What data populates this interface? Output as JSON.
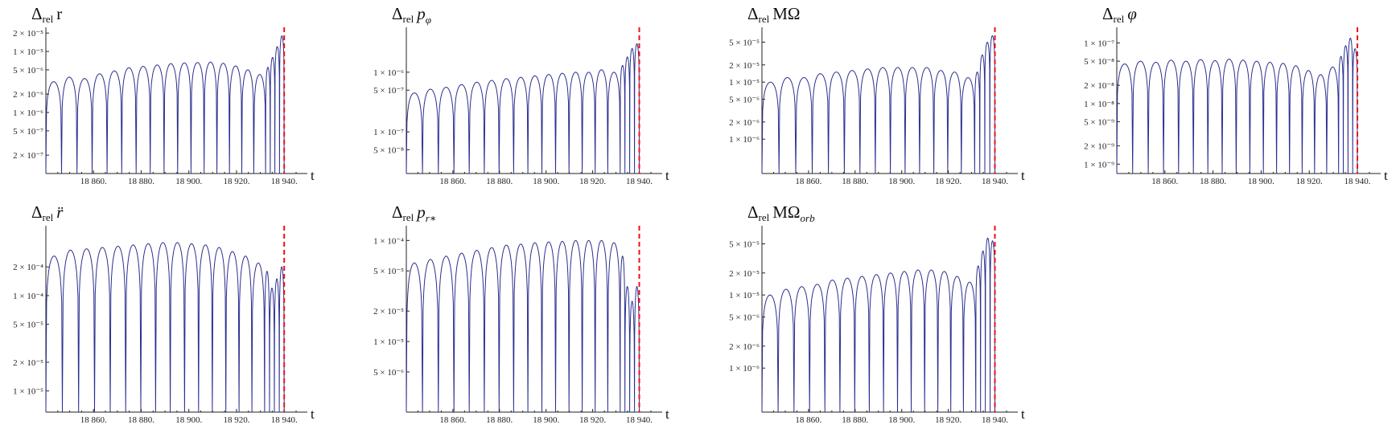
{
  "chart_data": [
    {
      "type": "line",
      "title_main": "Δ",
      "title_sub": "rel",
      "title_rest": "r",
      "title_rest_italic": false,
      "title_rest_sub": "",
      "xlabel": "t",
      "xticks": [
        "18 860.",
        "18 880.",
        "18 900.",
        "18 920.",
        "18 940."
      ],
      "yticks": [
        "2 × 10⁻⁵",
        "1 × 10⁻⁵",
        "5 × 10⁻⁶",
        "2 × 10⁻⁶",
        "1 × 10⁻⁶",
        "5 × 10⁻⁷",
        "2 × 10⁻⁷"
      ],
      "ylim": [
        1e-07,
        2.2e-05
      ],
      "ytick_values": [
        2e-05,
        1e-05,
        5e-06,
        2e-06,
        1e-06,
        5e-07,
        2e-07
      ],
      "xlim": [
        18840,
        18945
      ],
      "scale_y": "log",
      "arch_peaks": [
        3.2e-06,
        3.8e-06,
        3.6e-06,
        4.3e-06,
        4.8e-06,
        5.4e-06,
        5.7e-06,
        6e-06,
        6.3e-06,
        6.5e-06,
        6.6e-06,
        6.7e-06,
        6.4e-06,
        5.8e-06,
        5e-06,
        4.2e-06,
        5.5e-06,
        8e-06,
        1.2e-05,
        1.8e-05
      ],
      "vline_t": 18940,
      "series_name": ""
    },
    {
      "type": "line",
      "title_main": "Δ",
      "title_sub": "rel",
      "title_rest": "p",
      "title_rest_italic": true,
      "title_rest_sub": "φ",
      "xlabel": "t",
      "xticks": [
        "18 860.",
        "18 880.",
        "18 900.",
        "18 920.",
        "18 940."
      ],
      "yticks": [
        "1 × 10⁻⁶",
        "5 × 10⁻⁷",
        "1 × 10⁻⁷",
        "5 × 10⁻⁸"
      ],
      "ylim": [
        2e-08,
        5e-06
      ],
      "ytick_values": [
        1e-06,
        5e-07,
        1e-07,
        5e-08
      ],
      "xlim": [
        18840,
        18945
      ],
      "scale_y": "log",
      "arch_peaks": [
        4.5e-07,
        5.2e-07,
        5.6e-07,
        6.2e-07,
        6.8e-07,
        7.3e-07,
        7.8e-07,
        8.2e-07,
        8.7e-07,
        9.2e-07,
        9.6e-07,
        1e-06,
        1e-06,
        1.1e-06,
        1e-06,
        1.3e-06,
        1.8e-06,
        2.5e-06,
        3e-06
      ],
      "vline_t": 18940,
      "series_name": ""
    },
    {
      "type": "line",
      "title_main": "Δ",
      "title_sub": "rel",
      "title_rest": "MΩ",
      "title_rest_italic": false,
      "title_rest_sub": "",
      "xlabel": "t",
      "xticks": [
        "18 860.",
        "18 880.",
        "18 900.",
        "18 920.",
        "18 940."
      ],
      "yticks": [
        "5 × 10⁻⁵",
        "2 × 10⁻⁵",
        "1 × 10⁻⁵",
        "5 × 10⁻⁶",
        "2 × 10⁻⁶",
        "1 × 10⁻⁶"
      ],
      "ylim": [
        2.5e-07,
        8e-05
      ],
      "ytick_values": [
        5e-05,
        2e-05,
        1e-05,
        5e-06,
        2e-06,
        1e-06
      ],
      "xlim": [
        18840,
        18945
      ],
      "scale_y": "log",
      "arch_peaks": [
        1e-05,
        1.2e-05,
        1.2e-05,
        1.4e-05,
        1.5e-05,
        1.6e-05,
        1.7e-05,
        1.8e-05,
        1.8e-05,
        1.8e-05,
        1.8e-05,
        1.6e-05,
        1.5e-05,
        1.2e-05,
        1.5e-05,
        3e-05,
        5e-05,
        6.5e-05
      ],
      "vline_t": 18940,
      "series_name": ""
    },
    {
      "type": "line",
      "title_main": "Δ",
      "title_sub": "rel",
      "title_rest": "φ",
      "title_rest_italic": true,
      "title_rest_sub": "",
      "xlabel": "t",
      "xticks": [
        "18 860.",
        "18 880.",
        "18 900.",
        "18 920.",
        "18 940."
      ],
      "yticks": [
        "1 × 10⁻⁷",
        "5 × 10⁻⁸",
        "2 × 10⁻⁸",
        "1 × 10⁻⁸",
        "5 × 10⁻⁹",
        "2 × 10⁻⁹",
        "1 × 10⁻⁹"
      ],
      "ylim": [
        7e-10,
        1.6e-07
      ],
      "ytick_values": [
        1e-07,
        5e-08,
        2e-08,
        1e-08,
        5e-09,
        2e-09,
        1e-09
      ],
      "xlim": [
        18840,
        18945
      ],
      "scale_y": "log",
      "arch_peaks": [
        4.5e-08,
        5e-08,
        4.8e-08,
        5.2e-08,
        5e-08,
        5.3e-08,
        5.1e-08,
        5.4e-08,
        5.2e-08,
        5e-08,
        4.8e-08,
        4.6e-08,
        4.2e-08,
        3.5e-08,
        3e-08,
        4e-08,
        6e-08,
        9e-08,
        1.2e-07,
        8e-08
      ],
      "vline_t": 18940,
      "series_name": ""
    },
    {
      "type": "line",
      "title_main": "Δ",
      "title_sub": "rel",
      "title_rest": "r̈",
      "title_rest_italic": true,
      "title_rest_sub": "",
      "xlabel": "t",
      "xticks": [
        "18 860.",
        "18 880.",
        "18 900.",
        "18 920.",
        "18 940."
      ],
      "yticks": [
        "2 × 10⁻⁴",
        "1 × 10⁻⁴",
        "5 × 10⁻⁵",
        "2 × 10⁻⁵",
        "1 × 10⁻⁵"
      ],
      "ylim": [
        6e-06,
        0.0005
      ],
      "ytick_values": [
        0.0002,
        0.0001,
        5e-05,
        2e-05,
        1e-05
      ],
      "xlim": [
        18840,
        18945
      ],
      "scale_y": "log",
      "arch_peaks": [
        0.00026,
        0.0003,
        0.00031,
        0.00032,
        0.00033,
        0.00034,
        0.00035,
        0.00036,
        0.00036,
        0.00035,
        0.00034,
        0.00032,
        0.00029,
        0.00026,
        0.00022,
        0.00018,
        0.00012,
        0.00015,
        0.0002
      ],
      "vline_t": 18940,
      "series_name": ""
    },
    {
      "type": "line",
      "title_main": "Δ",
      "title_sub": "rel",
      "title_rest": "p",
      "title_rest_italic": true,
      "title_rest_sub": "r∗",
      "xlabel": "t",
      "xticks": [
        "18 860.",
        "18 880.",
        "18 900.",
        "18 920.",
        "18 940."
      ],
      "yticks": [
        "1 × 10⁻⁴",
        "5 × 10⁻⁵",
        "2 × 10⁻⁵",
        "1 × 10⁻⁵",
        "5 × 10⁻⁶"
      ],
      "ylim": [
        2e-06,
        0.00013
      ],
      "ytick_values": [
        0.0001,
        5e-05,
        2e-05,
        1e-05,
        5e-06
      ],
      "xlim": [
        18840,
        18945
      ],
      "scale_y": "log",
      "arch_peaks": [
        6e-05,
        6.5e-05,
        7e-05,
        7.5e-05,
        8e-05,
        8.5e-05,
        9e-05,
        9.2e-05,
        9.5e-05,
        9.7e-05,
        9.8e-05,
        0.0001,
        0.0001,
        0.0001,
        9.5e-05,
        7e-05,
        3.5e-05,
        2.5e-05,
        3.5e-05
      ],
      "vline_t": 18940,
      "series_name": ""
    },
    {
      "type": "line",
      "title_main": "Δ",
      "title_sub": "rel",
      "title_rest": "MΩ",
      "title_rest_italic": false,
      "title_rest_sub": "orb",
      "xlabel": "t",
      "xticks": [
        "18 860.",
        "18 880.",
        "18 900.",
        "18 920.",
        "18 940."
      ],
      "yticks": [
        "5 × 10⁻⁵",
        "2 × 10⁻⁵",
        "1 × 10⁻⁵",
        "5 × 10⁻⁶",
        "2 × 10⁻⁶",
        "1 × 10⁻⁶"
      ],
      "ylim": [
        2.5e-07,
        8e-05
      ],
      "ytick_values": [
        5e-05,
        2e-05,
        1e-05,
        5e-06,
        2e-06,
        1e-06
      ],
      "xlim": [
        18840,
        18945
      ],
      "scale_y": "log",
      "arch_peaks": [
        1e-05,
        1.2e-05,
        1.3e-05,
        1.4e-05,
        1.6e-05,
        1.7e-05,
        1.8e-05,
        1.9e-05,
        2e-05,
        2.1e-05,
        2.2e-05,
        2.2e-05,
        2.1e-05,
        1.8e-05,
        1.5e-05,
        2.5e-05,
        4e-05,
        6e-05,
        5.5e-05
      ],
      "vline_t": 18940,
      "series_name": ""
    }
  ]
}
